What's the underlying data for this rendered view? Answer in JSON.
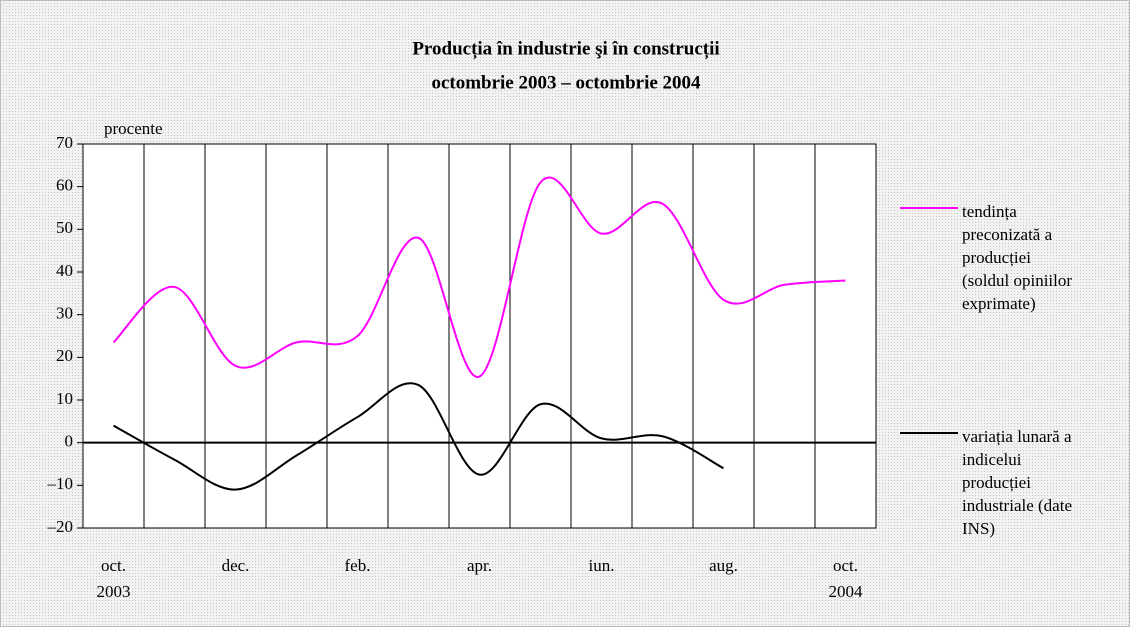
{
  "chart_data": {
    "type": "line",
    "title": "Producția în industrie şi în construcții",
    "subtitle": "octombrie 2003 – octombrie 2004",
    "y_label": "procente",
    "categories": [
      "oct.",
      null,
      "dec.",
      null,
      "feb.",
      null,
      "apr.",
      null,
      "iun.",
      null,
      "aug.",
      null,
      "oct."
    ],
    "category_years": [
      "2003",
      null,
      null,
      null,
      null,
      null,
      null,
      null,
      null,
      null,
      null,
      null,
      "2004"
    ],
    "series": [
      {
        "name": "tendința preconizată a producției (soldul opiniilor exprimate)",
        "color": "#ff00ff",
        "values": [
          23.5,
          36.5,
          18,
          23.5,
          25,
          48,
          15.5,
          61,
          49,
          56,
          33.5,
          37,
          38
        ]
      },
      {
        "name": "variația lunară a indicelui producției industriale (date INS)",
        "color": "#000000",
        "values": [
          4,
          -4,
          -11,
          -3,
          6,
          13.5,
          -7.5,
          9,
          1,
          1.5,
          -6,
          null,
          null
        ]
      }
    ],
    "ylim": [
      -20,
      70
    ],
    "yticks": [
      {
        "value": -20,
        "label": "–20"
      },
      {
        "value": -10,
        "label": "–10"
      },
      0,
      10,
      20,
      30,
      40,
      50,
      60,
      70
    ],
    "grid": false
  }
}
